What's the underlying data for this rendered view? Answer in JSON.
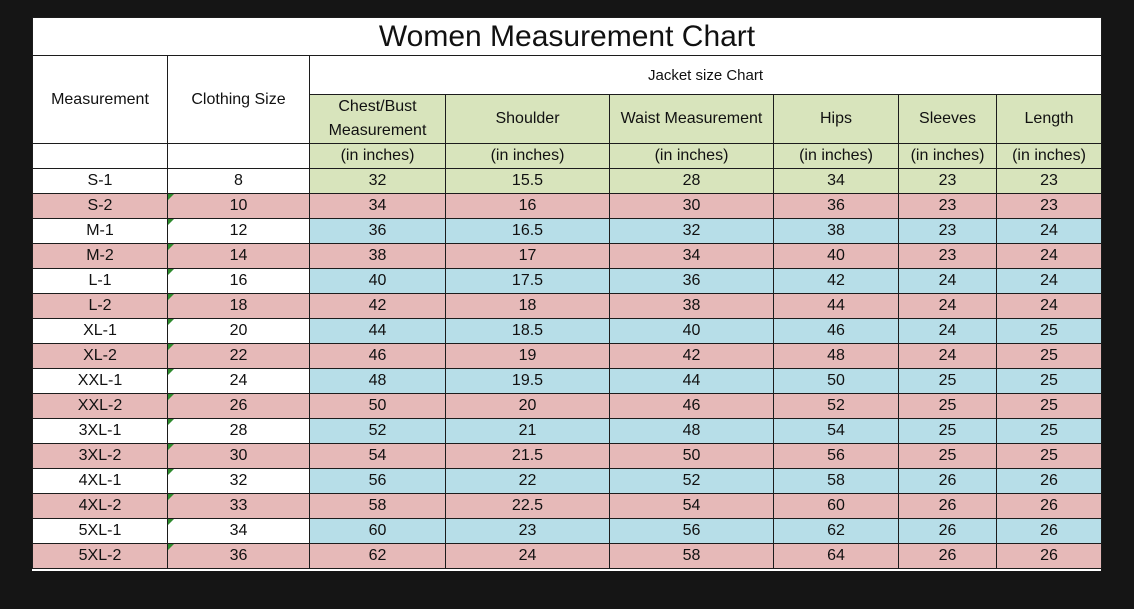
{
  "title": "Women Measurement Chart",
  "header": {
    "measurement": "Measurement",
    "clothing_size": "Clothing Size",
    "group": "Jacket size Chart",
    "columns": [
      "Chest/Bust Measurement",
      "Shoulder",
      "Waist Measurement",
      "Hips",
      "Sleeves",
      "Length"
    ],
    "unit": "(in inches)"
  },
  "rows": [
    {
      "size": "S-1",
      "clothing": "8",
      "values": [
        "32",
        "15.5",
        "28",
        "34",
        "23",
        "23"
      ]
    },
    {
      "size": "S-2",
      "clothing": "10",
      "values": [
        "34",
        "16",
        "30",
        "36",
        "23",
        "23"
      ]
    },
    {
      "size": "M-1",
      "clothing": "12",
      "values": [
        "36",
        "16.5",
        "32",
        "38",
        "23",
        "24"
      ]
    },
    {
      "size": "M-2",
      "clothing": "14",
      "values": [
        "38",
        "17",
        "34",
        "40",
        "23",
        "24"
      ]
    },
    {
      "size": "L-1",
      "clothing": "16",
      "values": [
        "40",
        "17.5",
        "36",
        "42",
        "24",
        "24"
      ]
    },
    {
      "size": "L-2",
      "clothing": "18",
      "values": [
        "42",
        "18",
        "38",
        "44",
        "24",
        "24"
      ]
    },
    {
      "size": "XL-1",
      "clothing": "20",
      "values": [
        "44",
        "18.5",
        "40",
        "46",
        "24",
        "25"
      ]
    },
    {
      "size": "XL-2",
      "clothing": "22",
      "values": [
        "46",
        "19",
        "42",
        "48",
        "24",
        "25"
      ]
    },
    {
      "size": "XXL-1",
      "clothing": "24",
      "values": [
        "48",
        "19.5",
        "44",
        "50",
        "25",
        "25"
      ]
    },
    {
      "size": "XXL-2",
      "clothing": "26",
      "values": [
        "50",
        "20",
        "46",
        "52",
        "25",
        "25"
      ]
    },
    {
      "size": "3XL-1",
      "clothing": "28",
      "values": [
        "52",
        "21",
        "48",
        "54",
        "25",
        "25"
      ]
    },
    {
      "size": "3XL-2",
      "clothing": "30",
      "values": [
        "54",
        "21.5",
        "50",
        "56",
        "25",
        "25"
      ]
    },
    {
      "size": "4XL-1",
      "clothing": "32",
      "values": [
        "56",
        "22",
        "52",
        "58",
        "26",
        "26"
      ]
    },
    {
      "size": "4XL-2",
      "clothing": "33",
      "values": [
        "58",
        "22.5",
        "54",
        "60",
        "26",
        "26"
      ]
    },
    {
      "size": "5XL-1",
      "clothing": "34",
      "values": [
        "60",
        "23",
        "56",
        "62",
        "26",
        "26"
      ]
    },
    {
      "size": "5XL-2",
      "clothing": "36",
      "values": [
        "62",
        "24",
        "58",
        "64",
        "26",
        "26"
      ]
    }
  ],
  "colors": {
    "background": "#151515",
    "header_green": "#d8e4bc",
    "row_pink": "#e6b9b8",
    "row_blue": "#b7dee8",
    "row_white": "#ffffff",
    "cell_marker": "#2e8b2e"
  }
}
